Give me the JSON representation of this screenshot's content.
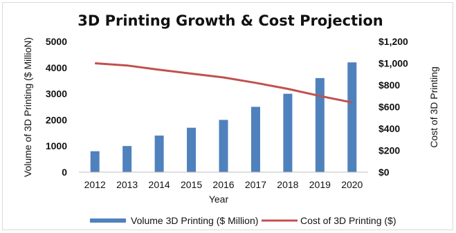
{
  "chart_data": {
    "type": "bar",
    "title": "3D Printing Growth & Cost Projection",
    "xlabel": "Year",
    "ylabel": "Volume of 3D Printing ($ MillioN)",
    "y2label": "Cost of 3D Printing",
    "categories": [
      "2012",
      "2013",
      "2014",
      "2015",
      "2016",
      "2017",
      "2018",
      "2019",
      "2020"
    ],
    "ylim": [
      0,
      5000
    ],
    "y_ticks": [
      "0",
      "1000",
      "2000",
      "3000",
      "4000",
      "5000"
    ],
    "y2lim": [
      0,
      1200
    ],
    "y2_ticks": [
      "$0",
      "$200",
      "$400",
      "$600",
      "$800",
      "$1,000",
      "$1,200"
    ],
    "series": [
      {
        "name": "Volume 3D Printing ($ Million)",
        "type": "bar",
        "axis": "left",
        "color": "#4f81bd",
        "values": [
          800,
          1000,
          1400,
          1700,
          2000,
          2500,
          3000,
          3600,
          4200
        ]
      },
      {
        "name": "Cost of 3D Printing ($)",
        "type": "line",
        "axis": "right",
        "color": "#c0504d",
        "values": [
          1000,
          980,
          940,
          905,
          870,
          820,
          765,
          700,
          640
        ]
      }
    ],
    "grid": false,
    "legend_position": "bottom"
  }
}
